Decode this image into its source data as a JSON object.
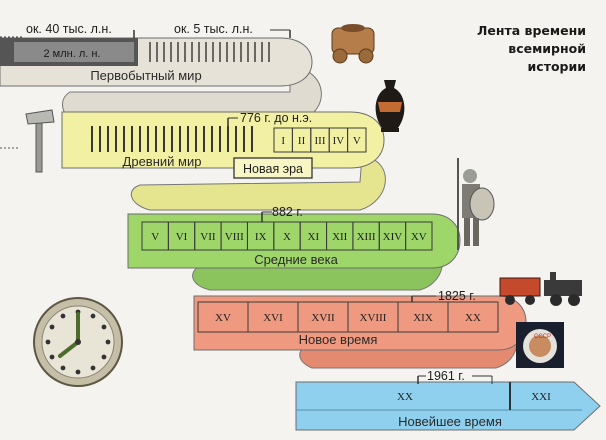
{
  "title": {
    "line1": "Лента времени",
    "line2": "всемирной",
    "line3": "истории"
  },
  "bands": {
    "prehistoric": {
      "label": "Первобытный мир",
      "marker_left": "ок. 40 тыс. л.н.",
      "marker_right": "ок. 5 тыс. л.н.",
      "inner_label": "2 млн. л. н.",
      "color": "#e7e2d7"
    },
    "ancient": {
      "label": "Древний мир",
      "marker": "776 г. до н.э.",
      "new_era": "Новая эра",
      "centuries": [
        "I",
        "II",
        "III",
        "IV",
        "V"
      ],
      "color": "#f2f1a3"
    },
    "medieval": {
      "label": "Средние века",
      "marker": "882 г.",
      "centuries": [
        "V",
        "VI",
        "VII",
        "VIII",
        "IX",
        "X",
        "XI",
        "XII",
        "XIII",
        "XIV",
        "XV"
      ],
      "color": "#9ed66a"
    },
    "modern": {
      "label": "Новое время",
      "marker": "1825 г.",
      "centuries": [
        "XV",
        "XVI",
        "XVII",
        "XVIII",
        "XIX",
        "XX"
      ],
      "color": "#ef9a80"
    },
    "contemporary": {
      "label": "Новейшее время",
      "marker": "1961 г.",
      "centuries": [
        "XX",
        "XXI"
      ],
      "color": "#8fd0ee"
    }
  },
  "icons": [
    "clay-cart-icon",
    "greek-vase-icon",
    "stone-axe-icon",
    "medieval-knight-icon",
    "steam-locomotive-icon",
    "astronaut-icon",
    "clock-icon"
  ]
}
